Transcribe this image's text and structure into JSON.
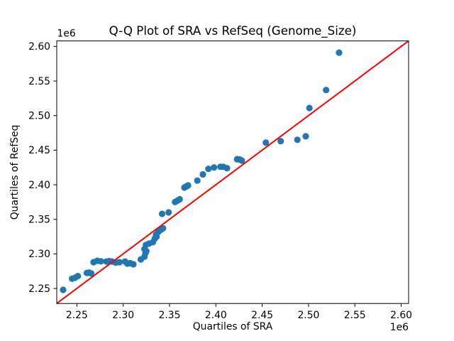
{
  "figure": {
    "background": "#ffffff"
  },
  "colors": {
    "marker": "#1f77b4",
    "reference_line": "#ff0000",
    "axis": "#000000",
    "text": "#000000"
  },
  "chart_data": {
    "type": "scatter",
    "title": "Q-Q Plot of SRA vs RefSeq (Genome_Size)",
    "xlabel": "Quartiles of SRA",
    "ylabel": "Quartiles of RefSeq",
    "x_offset_label": "1e6",
    "y_offset_label": "1e6",
    "xlim": [
      2228300,
      2608000
    ],
    "ylim": [
      2228300,
      2608000
    ],
    "xticks": [
      2250000,
      2300000,
      2350000,
      2400000,
      2450000,
      2500000,
      2550000,
      2600000
    ],
    "xtick_labels": [
      "2.25",
      "2.30",
      "2.35",
      "2.40",
      "2.45",
      "2.50",
      "2.55",
      "2.60"
    ],
    "yticks": [
      2250000,
      2300000,
      2350000,
      2400000,
      2450000,
      2500000,
      2550000,
      2600000
    ],
    "ytick_labels": [
      "2.25",
      "2.30",
      "2.35",
      "2.40",
      "2.45",
      "2.50",
      "2.55",
      "2.60"
    ],
    "grid": false,
    "legend": null,
    "reference_line": {
      "x": [
        2228300,
        2608000
      ],
      "y": [
        2228300,
        2608000
      ]
    },
    "points": [
      [
        2235200,
        2248000
      ],
      [
        2244800,
        2264200
      ],
      [
        2248000,
        2265500
      ],
      [
        2251000,
        2268000
      ],
      [
        2260800,
        2272500
      ],
      [
        2263000,
        2273000
      ],
      [
        2265500,
        2271800
      ],
      [
        2268000,
        2288000
      ],
      [
        2272000,
        2290000
      ],
      [
        2276000,
        2289300
      ],
      [
        2282000,
        2289000
      ],
      [
        2285000,
        2289500
      ],
      [
        2288000,
        2289000
      ],
      [
        2292000,
        2287500
      ],
      [
        2296000,
        2288000
      ],
      [
        2302000,
        2289000
      ],
      [
        2304500,
        2286000
      ],
      [
        2307500,
        2286500
      ],
      [
        2311000,
        2285000
      ],
      [
        2319000,
        2292000
      ],
      [
        2323000,
        2296000
      ],
      [
        2324000,
        2301000
      ],
      [
        2325000,
        2304000
      ],
      [
        2323000,
        2307000
      ],
      [
        2324500,
        2313000
      ],
      [
        2328000,
        2315000
      ],
      [
        2332000,
        2317000
      ],
      [
        2334000,
        2322000
      ],
      [
        2336000,
        2325000
      ],
      [
        2335500,
        2328000
      ],
      [
        2338000,
        2332000
      ],
      [
        2341000,
        2335000
      ],
      [
        2343000,
        2337000
      ],
      [
        2342000,
        2358000
      ],
      [
        2349000,
        2360000
      ],
      [
        2356000,
        2375000
      ],
      [
        2358500,
        2377000
      ],
      [
        2361000,
        2379000
      ],
      [
        2366000,
        2396000
      ],
      [
        2368000,
        2397500
      ],
      [
        2370000,
        2399000
      ],
      [
        2380000,
        2406000
      ],
      [
        2386000,
        2415000
      ],
      [
        2392000,
        2423000
      ],
      [
        2398000,
        2425000
      ],
      [
        2405000,
        2426000
      ],
      [
        2408000,
        2426000
      ],
      [
        2412000,
        2424000
      ],
      [
        2423000,
        2437000
      ],
      [
        2425500,
        2436500
      ],
      [
        2428000,
        2435000
      ],
      [
        2454000,
        2461000
      ],
      [
        2470000,
        2463000
      ],
      [
        2488000,
        2465000
      ],
      [
        2497000,
        2470000
      ],
      [
        2501000,
        2511000
      ],
      [
        2519000,
        2537000
      ],
      [
        2533000,
        2591000
      ]
    ]
  }
}
